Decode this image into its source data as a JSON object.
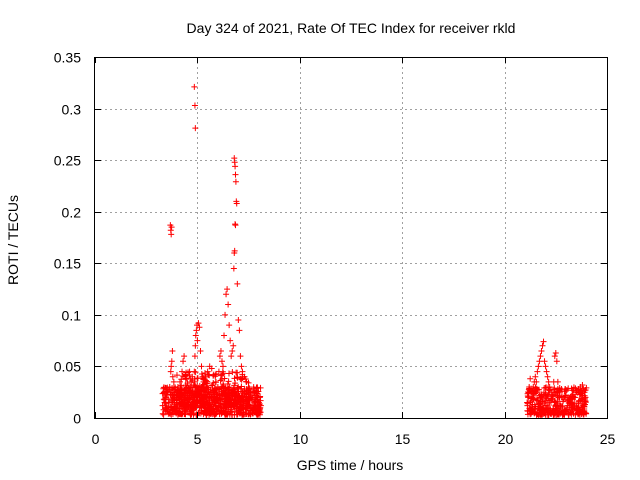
{
  "chart_data": {
    "type": "scatter",
    "title": "Day 324 of 2021, Rate Of TEC Index for receiver rkld",
    "xlabel": "GPS time / hours",
    "ylabel": "ROTI / TECUs",
    "xlim": [
      0,
      25
    ],
    "ylim": [
      0,
      0.35
    ],
    "x_ticks": [
      0,
      5,
      10,
      15,
      20,
      25
    ],
    "x_tick_labels": [
      "0",
      "5",
      "10",
      "15",
      "20",
      "25"
    ],
    "y_ticks": [
      0,
      0.05,
      0.1,
      0.15,
      0.2,
      0.25,
      0.3,
      0.35
    ],
    "y_tick_labels": [
      "0",
      "0.05",
      "0.1",
      "0.15",
      "0.2",
      "0.25",
      "0.3",
      "0.35"
    ],
    "grid": true,
    "marker": "+",
    "color": "#ff0000",
    "series": [
      {
        "name": "ROTI",
        "points": [
          [
            3.3,
            0.012
          ],
          [
            3.35,
            0.008
          ],
          [
            3.4,
            0.015
          ],
          [
            3.45,
            0.02
          ],
          [
            3.5,
            0.01
          ],
          [
            3.55,
            0.025
          ],
          [
            3.6,
            0.018
          ],
          [
            3.65,
            0.03
          ],
          [
            3.7,
            0.045
          ],
          [
            3.72,
            0.05
          ],
          [
            3.75,
            0.055
          ],
          [
            3.78,
            0.065
          ],
          [
            3.8,
            0.04
          ],
          [
            3.85,
            0.035
          ],
          [
            3.68,
            0.187
          ],
          [
            3.7,
            0.182
          ],
          [
            3.72,
            0.178
          ],
          [
            3.74,
            0.185
          ],
          [
            3.9,
            0.028
          ],
          [
            3.95,
            0.022
          ],
          [
            4.0,
            0.015
          ],
          [
            4.05,
            0.03
          ],
          [
            4.1,
            0.02
          ],
          [
            4.15,
            0.035
          ],
          [
            4.2,
            0.025
          ],
          [
            4.25,
            0.045
          ],
          [
            4.3,
            0.055
          ],
          [
            4.35,
            0.06
          ],
          [
            4.4,
            0.04
          ],
          [
            4.45,
            0.03
          ],
          [
            4.5,
            0.02
          ],
          [
            4.55,
            0.015
          ],
          [
            4.6,
            0.025
          ],
          [
            4.65,
            0.03
          ],
          [
            4.7,
            0.035
          ],
          [
            4.75,
            0.04
          ],
          [
            4.82,
            0.032
          ],
          [
            4.85,
            0.045
          ],
          [
            4.88,
            0.06
          ],
          [
            4.9,
            0.07
          ],
          [
            4.92,
            0.08
          ],
          [
            4.95,
            0.085
          ],
          [
            4.98,
            0.09
          ],
          [
            5.0,
            0.075
          ],
          [
            5.05,
            0.092
          ],
          [
            5.1,
            0.088
          ],
          [
            5.15,
            0.065
          ],
          [
            5.2,
            0.05
          ],
          [
            5.25,
            0.04
          ],
          [
            4.85,
            0.321
          ],
          [
            4.88,
            0.303
          ],
          [
            4.9,
            0.281
          ],
          [
            5.3,
            0.035
          ],
          [
            5.4,
            0.04
          ],
          [
            5.5,
            0.045
          ],
          [
            5.6,
            0.05
          ],
          [
            5.7,
            0.048
          ],
          [
            5.8,
            0.042
          ],
          [
            5.9,
            0.035
          ],
          [
            6.0,
            0.03
          ],
          [
            6.05,
            0.045
          ],
          [
            6.1,
            0.06
          ],
          [
            6.15,
            0.065
          ],
          [
            6.2,
            0.055
          ],
          [
            6.25,
            0.05
          ],
          [
            6.3,
            0.08
          ],
          [
            6.35,
            0.1
          ],
          [
            6.4,
            0.12
          ],
          [
            6.45,
            0.125
          ],
          [
            6.5,
            0.11
          ],
          [
            6.55,
            0.09
          ],
          [
            6.6,
            0.075
          ],
          [
            6.65,
            0.06
          ],
          [
            6.7,
            0.065
          ],
          [
            6.75,
            0.07
          ],
          [
            6.78,
            0.145
          ],
          [
            6.8,
            0.16
          ],
          [
            6.82,
            0.162
          ],
          [
            6.84,
            0.188
          ],
          [
            6.86,
            0.187
          ],
          [
            6.8,
            0.252
          ],
          [
            6.82,
            0.248
          ],
          [
            6.84,
            0.244
          ],
          [
            6.86,
            0.236
          ],
          [
            6.88,
            0.229
          ],
          [
            6.9,
            0.21
          ],
          [
            6.92,
            0.208
          ],
          [
            6.95,
            0.13
          ],
          [
            7.0,
            0.095
          ],
          [
            7.05,
            0.085
          ],
          [
            7.1,
            0.06
          ],
          [
            7.15,
            0.05
          ],
          [
            7.2,
            0.045
          ],
          [
            7.3,
            0.04
          ],
          [
            7.4,
            0.035
          ],
          [
            7.5,
            0.03
          ],
          [
            7.6,
            0.025
          ],
          [
            7.7,
            0.02
          ],
          [
            7.8,
            0.025
          ],
          [
            7.9,
            0.018
          ],
          [
            8.0,
            0.015
          ],
          [
            8.05,
            0.02
          ],
          [
            8.1,
            0.012
          ],
          [
            21.1,
            0.015
          ],
          [
            21.15,
            0.02
          ],
          [
            21.2,
            0.03
          ],
          [
            21.25,
            0.038
          ],
          [
            21.3,
            0.025
          ],
          [
            21.35,
            0.02
          ],
          [
            21.4,
            0.03
          ],
          [
            21.45,
            0.035
          ],
          [
            21.5,
            0.04
          ],
          [
            21.55,
            0.035
          ],
          [
            21.6,
            0.045
          ],
          [
            21.65,
            0.05
          ],
          [
            21.7,
            0.055
          ],
          [
            21.75,
            0.06
          ],
          [
            21.8,
            0.065
          ],
          [
            21.85,
            0.07
          ],
          [
            21.9,
            0.074
          ],
          [
            21.95,
            0.055
          ],
          [
            22.0,
            0.05
          ],
          [
            22.05,
            0.045
          ],
          [
            22.1,
            0.04
          ],
          [
            22.15,
            0.035
          ],
          [
            22.2,
            0.03
          ],
          [
            22.3,
            0.025
          ],
          [
            22.4,
            0.035
          ],
          [
            22.45,
            0.06
          ],
          [
            22.5,
            0.063
          ],
          [
            22.55,
            0.055
          ],
          [
            22.6,
            0.035
          ],
          [
            22.7,
            0.025
          ],
          [
            22.8,
            0.02
          ],
          [
            22.9,
            0.018
          ],
          [
            23.0,
            0.022
          ],
          [
            23.1,
            0.02
          ],
          [
            23.2,
            0.015
          ],
          [
            23.3,
            0.018
          ],
          [
            23.4,
            0.02
          ],
          [
            23.5,
            0.025
          ],
          [
            23.6,
            0.028
          ],
          [
            23.7,
            0.03
          ],
          [
            23.8,
            0.032
          ],
          [
            23.9,
            0.025
          ],
          [
            23.95,
            0.02
          ]
        ],
        "clusters": [
          {
            "x_range": [
              3.3,
              8.1
            ],
            "y_range": [
              0.003,
              0.03
            ],
            "count": 650
          },
          {
            "x_range": [
              4.0,
              7.5
            ],
            "y_range": [
              0.01,
              0.045
            ],
            "count": 260
          },
          {
            "x_range": [
              21.1,
              24.0
            ],
            "y_range": [
              0.003,
              0.03
            ],
            "count": 360
          }
        ]
      }
    ]
  }
}
